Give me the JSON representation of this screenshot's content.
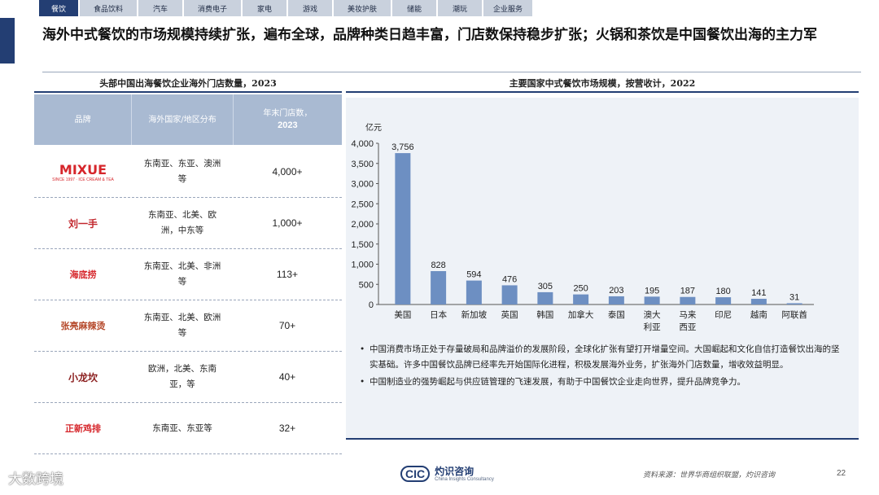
{
  "tabs": [
    {
      "label": "餐饮",
      "active": true
    },
    {
      "label": "食品饮料",
      "active": false
    },
    {
      "label": "汽车",
      "active": false
    },
    {
      "label": "消费电子",
      "active": false
    },
    {
      "label": "家电",
      "active": false
    },
    {
      "label": "游戏",
      "active": false
    },
    {
      "label": "美妆护肤",
      "active": false
    },
    {
      "label": "储能",
      "active": false
    },
    {
      "label": "潮玩",
      "active": false
    },
    {
      "label": "企业服务",
      "active": false
    }
  ],
  "headline": "海外中式餐饮的市场规模持续扩张，遍布全球，品牌种类日趋丰富，门店数保持稳步扩张；火锅和茶饮是中国餐饮出海的主力军",
  "left_table": {
    "title": "头部中国出海餐饮企业海外门店数量，2023",
    "headers": {
      "brand": "品牌",
      "region": "海外国家/地区分布",
      "stores_line1": "年末门店数，",
      "stores_line2": "2023"
    },
    "rows": [
      {
        "brand_logo_text": "MIXUE",
        "brand_logo_sub": "SINCE 1997 · ICE CREAM & TEA",
        "region": "东南亚、东亚、澳洲等",
        "stores": "4,000+"
      },
      {
        "brand_logo_text": "刘一手",
        "brand_logo_sub": "",
        "region": "东南亚、北美、欧洲，中东等",
        "stores": "1,000+"
      },
      {
        "brand_logo_text": "海底捞",
        "brand_logo_sub": "",
        "region": "东南亚、北美、非洲等",
        "stores": "113+"
      },
      {
        "brand_logo_text": "张亮麻辣烫",
        "brand_logo_sub": "",
        "region": "东南亚、北美、欧洲等",
        "stores": "70+"
      },
      {
        "brand_logo_text": "小龙坎",
        "brand_logo_sub": "",
        "region": "欧洲，北美、东南亚，等",
        "stores": "40+"
      },
      {
        "brand_logo_text": "正新鸡排",
        "brand_logo_sub": "",
        "region": "东南亚、东亚等",
        "stores": "32+"
      }
    ]
  },
  "right_panel": {
    "title": "主要国家中式餐饮市场规模，按营收计，2022",
    "bullets": [
      "中国消费市场正处于存量破局和品牌溢价的发展阶段，全球化扩张有望打开增量空间。大国崛起和文化自信打造餐饮出海的坚实基础。许多中国餐饮品牌已经率先开始国际化进程，积极发展海外业务，扩张海外门店数量，增收效益明显。",
      "中国制造业的强势崛起与供应链管理的飞速发展，有助于中国餐饮企业走向世界，提升品牌竞争力。"
    ]
  },
  "chart_data": {
    "type": "bar",
    "title": "主要国家中式餐饮市场规模，按营收计，2022",
    "ylabel": "亿元",
    "xlabel": "",
    "categories": [
      "美国",
      "日本",
      "新加坡",
      "英国",
      "韩国",
      "加拿大",
      "泰国",
      "澳大利亚",
      "马来西亚",
      "印尼",
      "越南",
      "阿联酋"
    ],
    "category_lines": [
      [
        "美国"
      ],
      [
        "日本"
      ],
      [
        "新加坡"
      ],
      [
        "英国"
      ],
      [
        "韩国"
      ],
      [
        "加拿大"
      ],
      [
        "泰国"
      ],
      [
        "澳大",
        "利亚"
      ],
      [
        "马来",
        "西亚"
      ],
      [
        "印尼"
      ],
      [
        "越南"
      ],
      [
        "阿联酋"
      ]
    ],
    "values": [
      3756,
      828,
      594,
      476,
      305,
      250,
      203,
      195,
      187,
      180,
      141,
      31
    ],
    "value_labels": [
      "3,756",
      "828",
      "594",
      "476",
      "305",
      "250",
      "203",
      "195",
      "187",
      "180",
      "141",
      "31"
    ],
    "ylim": [
      0,
      4000
    ],
    "yticks": [
      0,
      500,
      1000,
      1500,
      2000,
      2500,
      3000,
      3500,
      4000
    ],
    "ytick_labels": [
      "0",
      "500",
      "1,000",
      "1,500",
      "2,000",
      "2,500",
      "3,000",
      "3,500",
      "4,000"
    ],
    "bar_color": "#6d8fc2",
    "grid": false
  },
  "footer": {
    "brand_watermark": "大数跨境",
    "logo_abbr": "CIC",
    "logo_cn": "灼识咨询",
    "logo_en": "China Insights Consultancy",
    "source": "资料来源：世界华商组织联盟，灼识咨询",
    "page_number": "22"
  },
  "colors": {
    "navy": "#233e73",
    "header_bg": "#a9bad2",
    "panel_bg": "#eef2f7",
    "bar": "#6d8fc2"
  }
}
